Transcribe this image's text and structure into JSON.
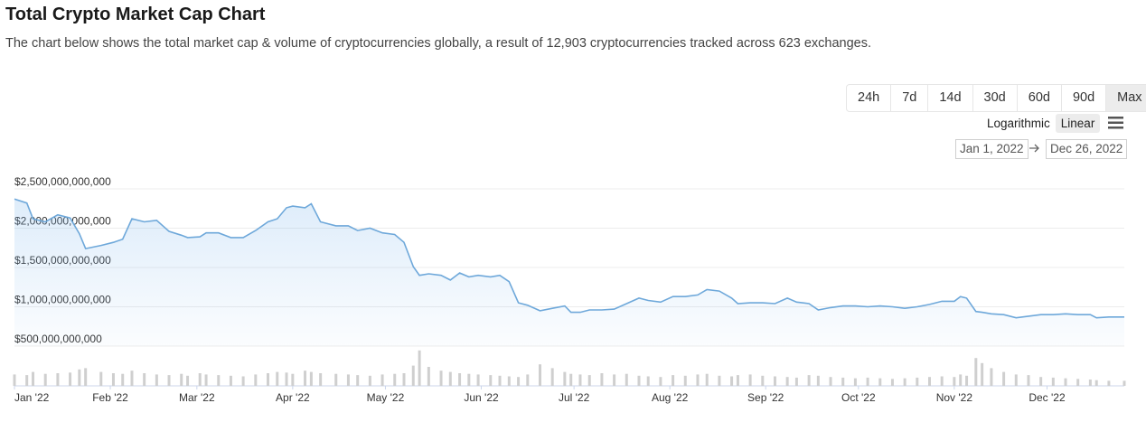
{
  "header": {
    "title": "Total Crypto Market Cap Chart",
    "subtitle": "The chart below shows the total market cap & volume of cryptocurrencies globally, a result of 12,903 cryptocurrencies tracked across 623 exchanges."
  },
  "controls": {
    "ranges": [
      "24h",
      "7d",
      "14d",
      "30d",
      "60d",
      "90d",
      "Max"
    ],
    "scale_options": [
      "Logarithmic",
      "Linear"
    ],
    "date_from": "Jan 1, 2022",
    "date_to": "Dec 26, 2022"
  },
  "chart_data": {
    "type": "line",
    "x": [
      0,
      4,
      6,
      10,
      14,
      18,
      21,
      23,
      28,
      32,
      35,
      38,
      42,
      46,
      50,
      54,
      56,
      60,
      62,
      66,
      70,
      74,
      78,
      82,
      85,
      88,
      90,
      94,
      96,
      99,
      104,
      108,
      111,
      115,
      119,
      123,
      126,
      129,
      131,
      134,
      138,
      141,
      144,
      147,
      150,
      154,
      157,
      160,
      163,
      166,
      170,
      174,
      178,
      180,
      183,
      186,
      190,
      194,
      198,
      202,
      205,
      209,
      213,
      217,
      221,
      224,
      228,
      232,
      234,
      238,
      242,
      246,
      250,
      253,
      257,
      260,
      264,
      268,
      272,
      276,
      280,
      284,
      288,
      292,
      296,
      300,
      304,
      306,
      308,
      311,
      313,
      316,
      320,
      324,
      328,
      332,
      336,
      340,
      344,
      348,
      350,
      354,
      359
    ],
    "series": [
      {
        "type": "line",
        "color": "#6ea8da",
        "values": [
          2370000000000,
          2320000000000,
          2120000000000,
          2080000000000,
          2170000000000,
          2130000000000,
          1930000000000,
          1740000000000,
          1780000000000,
          1820000000000,
          1860000000000,
          2120000000000,
          2080000000000,
          2100000000000,
          1960000000000,
          1910000000000,
          1880000000000,
          1890000000000,
          1940000000000,
          1940000000000,
          1880000000000,
          1880000000000,
          1970000000000,
          2080000000000,
          2120000000000,
          2260000000000,
          2280000000000,
          2260000000000,
          2310000000000,
          2080000000000,
          2030000000000,
          2030000000000,
          1970000000000,
          2000000000000,
          1940000000000,
          1920000000000,
          1820000000000,
          1510000000000,
          1400000000000,
          1420000000000,
          1400000000000,
          1340000000000,
          1430000000000,
          1380000000000,
          1400000000000,
          1380000000000,
          1400000000000,
          1320000000000,
          1050000000000,
          1020000000000,
          950000000000,
          980000000000,
          1010000000000,
          930000000000,
          930000000000,
          960000000000,
          960000000000,
          970000000000,
          1040000000000,
          1110000000000,
          1080000000000,
          1060000000000,
          1130000000000,
          1130000000000,
          1150000000000,
          1220000000000,
          1200000000000,
          1110000000000,
          1040000000000,
          1050000000000,
          1050000000000,
          1040000000000,
          1110000000000,
          1060000000000,
          1040000000000,
          960000000000,
          990000000000,
          1010000000000,
          1010000000000,
          1000000000000,
          1010000000000,
          1000000000000,
          980000000000,
          1000000000000,
          1030000000000,
          1070000000000,
          1070000000000,
          1130000000000,
          1110000000000,
          940000000000,
          930000000000,
          910000000000,
          900000000000,
          860000000000,
          880000000000,
          900000000000,
          900000000000,
          910000000000,
          900000000000,
          900000000000,
          860000000000,
          870000000000,
          870000000000
        ]
      },
      {
        "type": "bar",
        "axis": "y2",
        "color": "#cfcfcf",
        "values": [
          90000000000,
          85000000000,
          110000000000,
          95000000000,
          100000000000,
          105000000000,
          130000000000,
          140000000000,
          110000000000,
          100000000000,
          95000000000,
          120000000000,
          100000000000,
          90000000000,
          85000000000,
          95000000000,
          80000000000,
          100000000000,
          90000000000,
          85000000000,
          80000000000,
          75000000000,
          90000000000,
          100000000000,
          110000000000,
          105000000000,
          95000000000,
          120000000000,
          110000000000,
          100000000000,
          95000000000,
          90000000000,
          85000000000,
          80000000000,
          90000000000,
          95000000000,
          100000000000,
          160000000000,
          280000000000,
          150000000000,
          120000000000,
          110000000000,
          100000000000,
          95000000000,
          90000000000,
          85000000000,
          80000000000,
          75000000000,
          70000000000,
          90000000000,
          170000000000,
          140000000000,
          110000000000,
          95000000000,
          90000000000,
          85000000000,
          100000000000,
          90000000000,
          95000000000,
          80000000000,
          75000000000,
          70000000000,
          85000000000,
          80000000000,
          90000000000,
          95000000000,
          80000000000,
          75000000000,
          85000000000,
          90000000000,
          80000000000,
          75000000000,
          70000000000,
          65000000000,
          85000000000,
          80000000000,
          70000000000,
          65000000000,
          60000000000,
          65000000000,
          60000000000,
          55000000000,
          60000000000,
          65000000000,
          70000000000,
          75000000000,
          70000000000,
          90000000000,
          80000000000,
          220000000000,
          180000000000,
          140000000000,
          110000000000,
          90000000000,
          85000000000,
          70000000000,
          65000000000,
          60000000000,
          55000000000,
          50000000000,
          45000000000,
          40000000000,
          40000000000
        ]
      }
    ],
    "xlim": [
      0,
      359
    ],
    "xticks": [
      {
        "value": 0,
        "label": "Jan '22"
      },
      {
        "value": 31,
        "label": "Feb '22"
      },
      {
        "value": 59,
        "label": "Mar '22"
      },
      {
        "value": 90,
        "label": "Apr '22"
      },
      {
        "value": 120,
        "label": "May '22"
      },
      {
        "value": 151,
        "label": "Jun '22"
      },
      {
        "value": 181,
        "label": "Jul '22"
      },
      {
        "value": 212,
        "label": "Aug '22"
      },
      {
        "value": 243,
        "label": "Sep '22"
      },
      {
        "value": 273,
        "label": "Oct '22"
      },
      {
        "value": 304,
        "label": "Nov '22"
      },
      {
        "value": 334,
        "label": "Dec '22"
      }
    ],
    "ylim": [
      500000000000,
      2500000000000
    ],
    "yticks": [
      {
        "value": 500000000000,
        "label": "$500,000,000,000"
      },
      {
        "value": 1000000000000,
        "label": "$1,000,000,000,000"
      },
      {
        "value": 1500000000000,
        "label": "$1,500,000,000,000"
      },
      {
        "value": 2000000000000,
        "label": "$2,000,000,000,000"
      },
      {
        "value": 2500000000000,
        "label": "$2,500,000,000,000"
      }
    ],
    "y2lim": [
      0,
      300000000000
    ],
    "grid": true
  }
}
